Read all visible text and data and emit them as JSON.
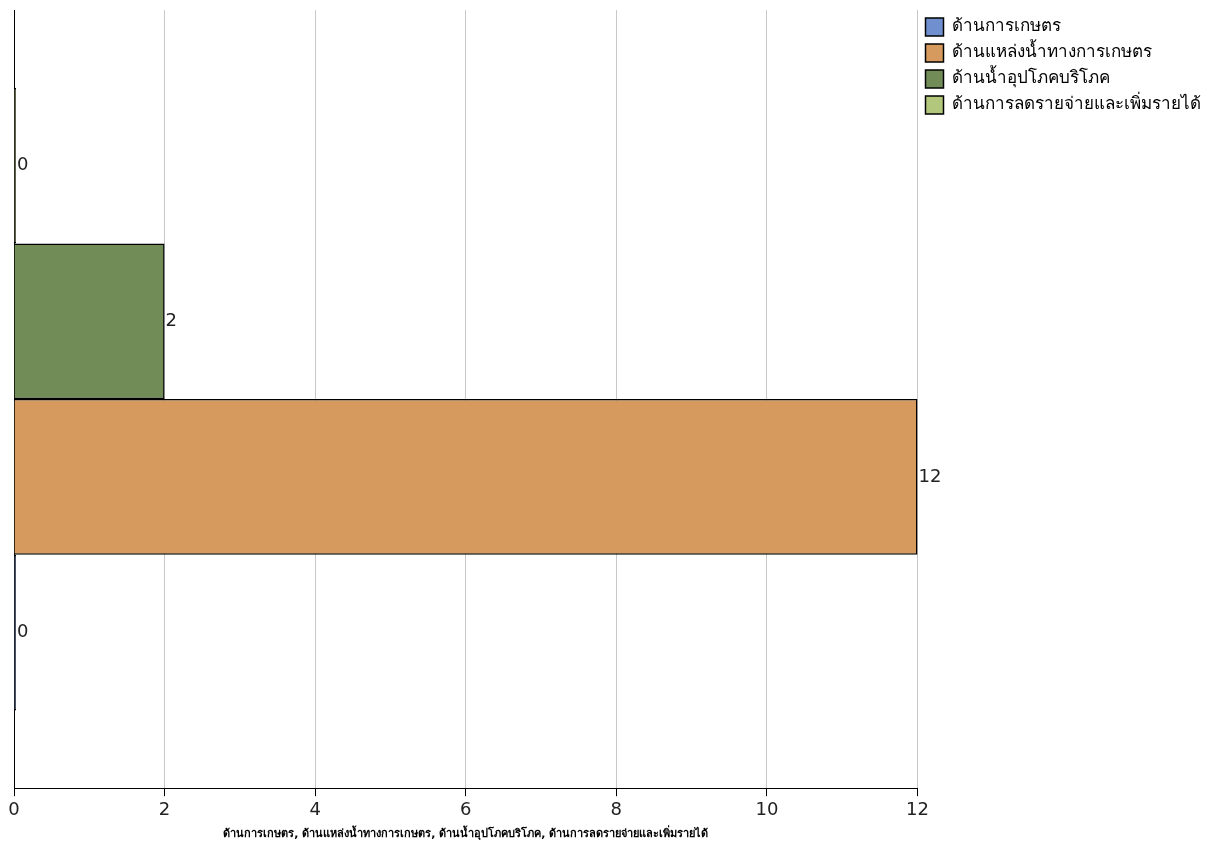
{
  "chart_data": {
    "type": "bar",
    "orientation": "horizontal",
    "categories": [
      null
    ],
    "series": [
      {
        "name": "ด้านการเกษตร",
        "color": "#6f8fcf",
        "values": [
          0
        ]
      },
      {
        "name": "ด้านแหล่งน้ำทางการเกษตร",
        "color": "#d69a5e",
        "values": [
          12
        ]
      },
      {
        "name": "ด้านน้ำอุปโภคบริโภค",
        "color": "#728c58",
        "values": [
          2
        ]
      },
      {
        "name": "ด้านการลดรายจ่ายและเพิ่มรายได้",
        "color": "#b3c77c",
        "values": [
          0
        ]
      }
    ],
    "xlabel": "ด้านการเกษตร, ด้านแหล่งน้ำทางการเกษตร, ด้านน้ำอุปโภคบริโภค, ด้านการลดรายจ่ายและเพิ่มรายได้",
    "xlim": [
      0,
      12
    ],
    "xticks": [
      0,
      2,
      4,
      6,
      8,
      10,
      12
    ],
    "grid": "x",
    "legend": "top right",
    "tick_labels": "x",
    "data_labels": true
  }
}
